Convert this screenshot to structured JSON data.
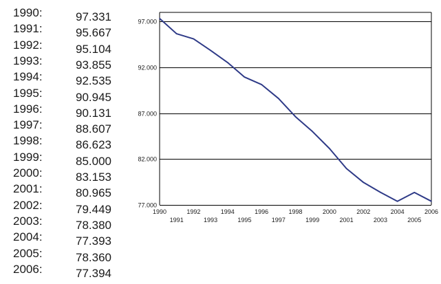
{
  "table": {
    "rows": [
      {
        "year": "1990:",
        "value": "97.331"
      },
      {
        "year": "1991:",
        "value": "95.667"
      },
      {
        "year": "1992:",
        "value": "95.104"
      },
      {
        "year": "1993:",
        "value": "93.855"
      },
      {
        "year": "1994:",
        "value": "92.535"
      },
      {
        "year": "1995:",
        "value": "90.945"
      },
      {
        "year": "1996:",
        "value": "90.131"
      },
      {
        "year": "1997:",
        "value": "88.607"
      },
      {
        "year": "1998:",
        "value": "86.623"
      },
      {
        "year": "1999:",
        "value": "85.000"
      },
      {
        "year": "2000:",
        "value": "83.153"
      },
      {
        "year": "2001:",
        "value": "80.965"
      },
      {
        "year": "2002:",
        "value": "79.449"
      },
      {
        "year": "2003:",
        "value": "78.380"
      },
      {
        "year": "2004:",
        "value": "77.393"
      },
      {
        "year": "2005:",
        "value": "78.360"
      },
      {
        "year": "2006:",
        "value": "77.394"
      }
    ]
  },
  "chart_data": {
    "type": "line",
    "title": "",
    "xlabel": "",
    "ylabel": "",
    "x": [
      1990,
      1991,
      1992,
      1993,
      1994,
      1995,
      1996,
      1997,
      1998,
      1999,
      2000,
      2001,
      2002,
      2003,
      2004,
      2005,
      2006
    ],
    "series": [
      {
        "values": [
          97.331,
          95.667,
          95.104,
          93.855,
          92.535,
          90.945,
          90.131,
          88.607,
          86.623,
          85.0,
          83.153,
          80.965,
          79.449,
          78.38,
          77.393,
          78.36,
          77.394
        ]
      }
    ],
    "xlim": [
      1990,
      2006
    ],
    "ylim": [
      77,
      98
    ],
    "y_ticks": [
      77,
      82,
      87,
      92,
      97
    ],
    "y_tick_labels": [
      "77.000",
      "82.000",
      "87.000",
      "92.000",
      "97.000"
    ],
    "x_tick_labels_top": [
      "1990",
      "1992",
      "1994",
      "1996",
      "1998",
      "2000",
      "2002",
      "2004",
      "2006"
    ],
    "x_tick_labels_bottom": [
      "1991",
      "1993",
      "1995",
      "1997",
      "1999",
      "2001",
      "2003",
      "2005"
    ],
    "grid": "horizontal",
    "legend": "none",
    "line_color": "#2e3a87"
  }
}
